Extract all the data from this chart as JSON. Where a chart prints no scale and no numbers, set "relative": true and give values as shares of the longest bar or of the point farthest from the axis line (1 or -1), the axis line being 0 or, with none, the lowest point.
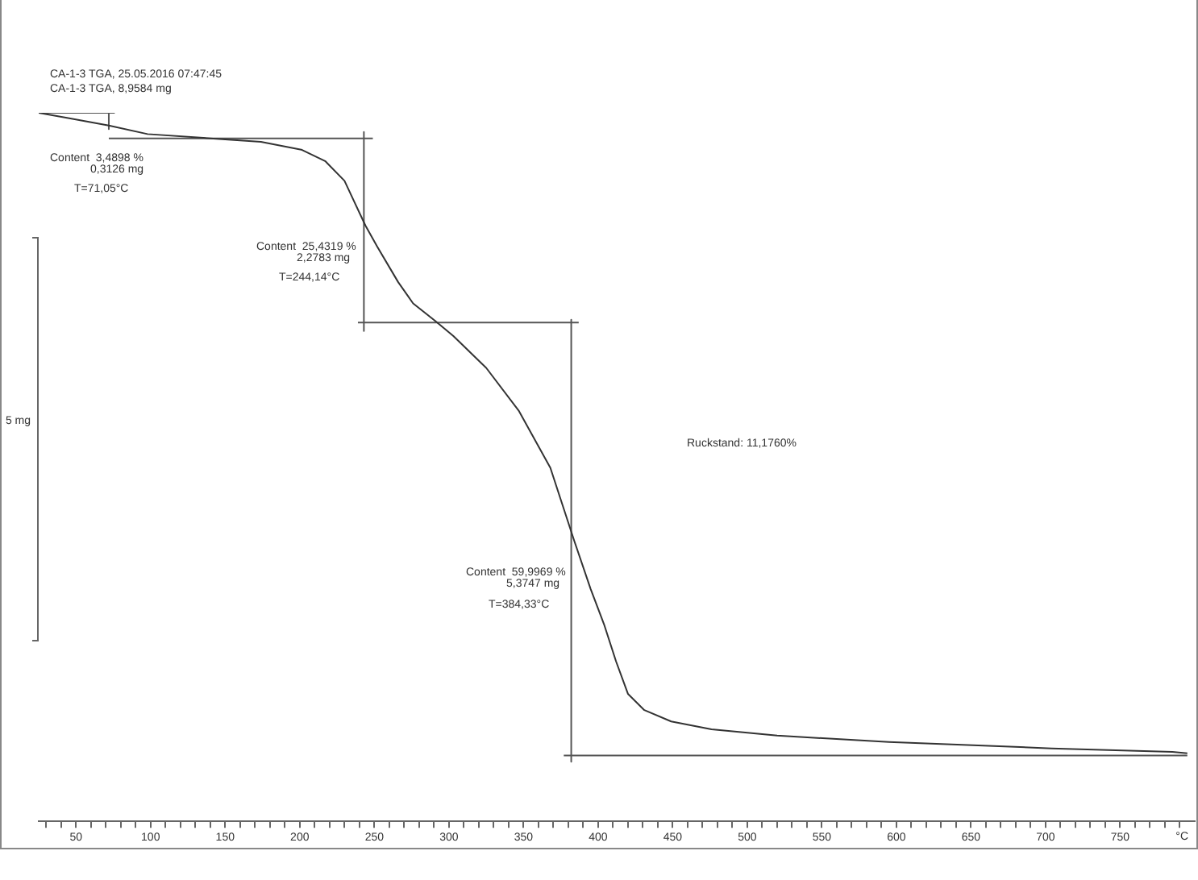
{
  "chart_data": {
    "type": "line",
    "relative": true,
    "title": "CA-1-3 TGA, 25.05.2016 07:47:45",
    "subtitle": "CA-1-3 TGA, 8,9584 mg",
    "ylabel": "5 mg",
    "xlabel": "°C",
    "xlim": [
      25,
      800
    ],
    "xticks": [
      {
        "value": 30,
        "label": null
      },
      {
        "value": 40,
        "label": null
      },
      50,
      {
        "value": 60,
        "label": null
      },
      {
        "value": 70,
        "label": null
      },
      {
        "value": 80,
        "label": null
      },
      {
        "value": 90,
        "label": null
      },
      100,
      {
        "value": 110,
        "label": null
      },
      {
        "value": 120,
        "label": null
      },
      {
        "value": 130,
        "label": null
      },
      {
        "value": 140,
        "label": null
      },
      150,
      {
        "value": 160,
        "label": null
      },
      {
        "value": 170,
        "label": null
      },
      {
        "value": 180,
        "label": null
      },
      {
        "value": 190,
        "label": null
      },
      200,
      {
        "value": 210,
        "label": null
      },
      {
        "value": 220,
        "label": null
      },
      {
        "value": 230,
        "label": null
      },
      {
        "value": 240,
        "label": null
      },
      250,
      {
        "value": 260,
        "label": null
      },
      {
        "value": 270,
        "label": null
      },
      {
        "value": 280,
        "label": null
      },
      {
        "value": 290,
        "label": null
      },
      300,
      {
        "value": 310,
        "label": null
      },
      {
        "value": 320,
        "label": null
      },
      {
        "value": 330,
        "label": null
      },
      {
        "value": 340,
        "label": null
      },
      350,
      {
        "value": 360,
        "label": null
      },
      {
        "value": 370,
        "label": null
      },
      {
        "value": 380,
        "label": null
      },
      {
        "value": 390,
        "label": null
      },
      400,
      {
        "value": 410,
        "label": null
      },
      {
        "value": 420,
        "label": null
      },
      {
        "value": 430,
        "label": null
      },
      {
        "value": 440,
        "label": null
      },
      450,
      {
        "value": 460,
        "label": null
      },
      {
        "value": 470,
        "label": null
      },
      {
        "value": 480,
        "label": null
      },
      {
        "value": 490,
        "label": null
      },
      500,
      {
        "value": 510,
        "label": null
      },
      {
        "value": 520,
        "label": null
      },
      {
        "value": 530,
        "label": null
      },
      {
        "value": 540,
        "label": null
      },
      550,
      {
        "value": 560,
        "label": null
      },
      {
        "value": 570,
        "label": null
      },
      {
        "value": 580,
        "label": null
      },
      {
        "value": 590,
        "label": null
      },
      600,
      {
        "value": 610,
        "label": null
      },
      {
        "value": 620,
        "label": null
      },
      {
        "value": 630,
        "label": null
      },
      {
        "value": 640,
        "label": null
      },
      650,
      {
        "value": 660,
        "label": null
      },
      {
        "value": 670,
        "label": null
      },
      {
        "value": 680,
        "label": null
      },
      {
        "value": 690,
        "label": null
      },
      700,
      {
        "value": 710,
        "label": null
      },
      {
        "value": 720,
        "label": null
      },
      {
        "value": 730,
        "label": null
      },
      {
        "value": 740,
        "label": null
      },
      750,
      {
        "value": 760,
        "label": null
      },
      {
        "value": 770,
        "label": null
      },
      {
        "value": 780,
        "label": null
      },
      {
        "value": 790,
        "label": null
      }
    ],
    "grid": false,
    "legend": false,
    "series": [
      {
        "color": "#333333",
        "x": [
          25,
          44,
          72,
          98,
          140,
          174,
          201,
          217,
          230,
          244,
          252,
          266,
          276,
          291,
          303,
          325,
          347,
          368,
          384,
          395,
          404,
          412,
          420,
          431,
          449,
          476,
          520,
          595,
          704,
          785,
          795
        ],
        "values": [
          1.0,
          0.993,
          0.982,
          0.97,
          0.964,
          0.959,
          0.948,
          0.932,
          0.904,
          0.841,
          0.811,
          0.761,
          0.731,
          0.706,
          0.685,
          0.64,
          0.579,
          0.499,
          0.396,
          0.328,
          0.278,
          0.226,
          0.18,
          0.157,
          0.141,
          0.13,
          0.121,
          0.112,
          0.103,
          0.098,
          0.096
        ]
      },
      {
        "color": "#555555",
        "x": [
          25,
          76
        ],
        "values": [
          1.0,
          1.0
        ]
      },
      {
        "color": "#555555",
        "x": [
          72,
          72
        ],
        "values": [
          1.0,
          0.977
        ]
      },
      {
        "color": "#555555",
        "x": [
          72,
          249
        ],
        "values": [
          0.964,
          0.964
        ]
      },
      {
        "color": "#555555",
        "x": [
          243,
          243
        ],
        "values": [
          0.973,
          0.692
        ]
      },
      {
        "color": "#555555",
        "x": [
          239,
          387
        ],
        "values": [
          0.704,
          0.704
        ]
      },
      {
        "color": "#555555",
        "x": [
          382,
          382
        ],
        "values": [
          0.708,
          0.084
        ]
      },
      {
        "color": "#555555",
        "x": [
          377,
          795
        ],
        "values": [
          0.093,
          0.093
        ]
      }
    ],
    "annotations": [
      "Content  3,4898 %",
      "0,3126 mg",
      "T=71,05°C",
      "Content  25,4319 %",
      "2,2783 mg",
      "T=244,14°C",
      "Ruckstand: 11,1760%",
      "Content  59,9969 %",
      "5,3747 mg",
      "T=384,33°C"
    ]
  }
}
